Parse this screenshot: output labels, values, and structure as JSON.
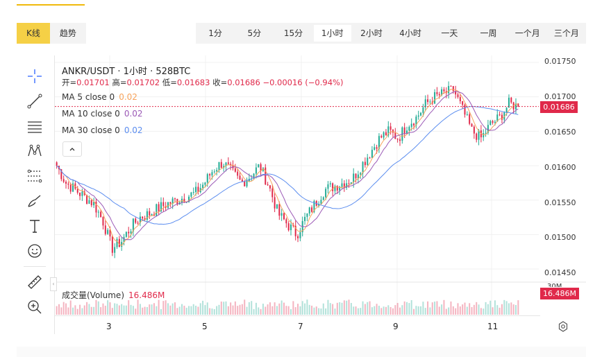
{
  "view_toggle": {
    "items": [
      "K线",
      "趋势"
    ],
    "active": 0
  },
  "intervals": {
    "items": [
      "1分",
      "5分",
      "15分",
      "1小时",
      "2小时",
      "4小时",
      "一天",
      "一周",
      "一个月",
      "三个月"
    ],
    "active": 3
  },
  "legend": {
    "title": "ANKR/USDT · 1小时 · 528BTC",
    "open_label": "开=",
    "open": "0.01701",
    "high_label": "高=",
    "high": "0.01702",
    "low_label": "低=",
    "low": "0.01683",
    "close_label": "收=",
    "close": "0.01686",
    "change": "−0.00016 (−0.94%)",
    "ma5_label": "MA 5 close 0",
    "ma5_value": "0.02",
    "ma10_label": "MA 10 close 0",
    "ma10_value": "0.02",
    "ma30_label": "MA 30 close 0",
    "ma30_value": "0.02"
  },
  "volume": {
    "label": "成交量(Volume)",
    "value": "16.486M",
    "tag": "16.486M",
    "axis_top": "30M"
  },
  "price_axis": {
    "ticks": [
      "0.01750",
      "0.01700",
      "0.01650",
      "0.01600",
      "0.01550",
      "0.01500",
      "0.01450"
    ],
    "current": "0.01686"
  },
  "time_axis": {
    "ticks": [
      "3",
      "5",
      "7",
      "9",
      "11"
    ]
  },
  "colors": {
    "up": "#22ab94",
    "down": "#e0294a",
    "ma5": "#f7a35c",
    "ma10": "#9b59b6",
    "ma30": "#5b8def",
    "accent": "#f5d046"
  },
  "chart_data": {
    "type": "candlestick",
    "symbol": "ANKR/USDT",
    "interval": "1小时",
    "y_ticks": [
      0.0175,
      0.017,
      0.0165,
      0.016,
      0.0155,
      0.015,
      0.0145
    ],
    "ylim": [
      0.01435,
      0.01762
    ],
    "x_ticks": [
      "3",
      "5",
      "7",
      "9",
      "11"
    ],
    "close_path": [
      0.016,
      0.01575,
      0.01565,
      0.01555,
      0.01545,
      0.0152,
      0.0148,
      0.0149,
      0.0151,
      0.01525,
      0.0153,
      0.01538,
      0.01545,
      0.0155,
      0.01555,
      0.0156,
      0.01575,
      0.01595,
      0.01605,
      0.0159,
      0.01575,
      0.01585,
      0.016,
      0.0157,
      0.0153,
      0.01515,
      0.015,
      0.01525,
      0.01545,
      0.01565,
      0.0157,
      0.01575,
      0.0158,
      0.016,
      0.0162,
      0.0164,
      0.0165,
      0.0164,
      0.0166,
      0.0167,
      0.0169,
      0.017,
      0.01705,
      0.0171,
      0.0168,
      0.0165,
      0.0164,
      0.0166,
      0.0167,
      0.0169,
      0.01686
    ],
    "current_price": 0.01686,
    "last_volume": "16.486M"
  }
}
